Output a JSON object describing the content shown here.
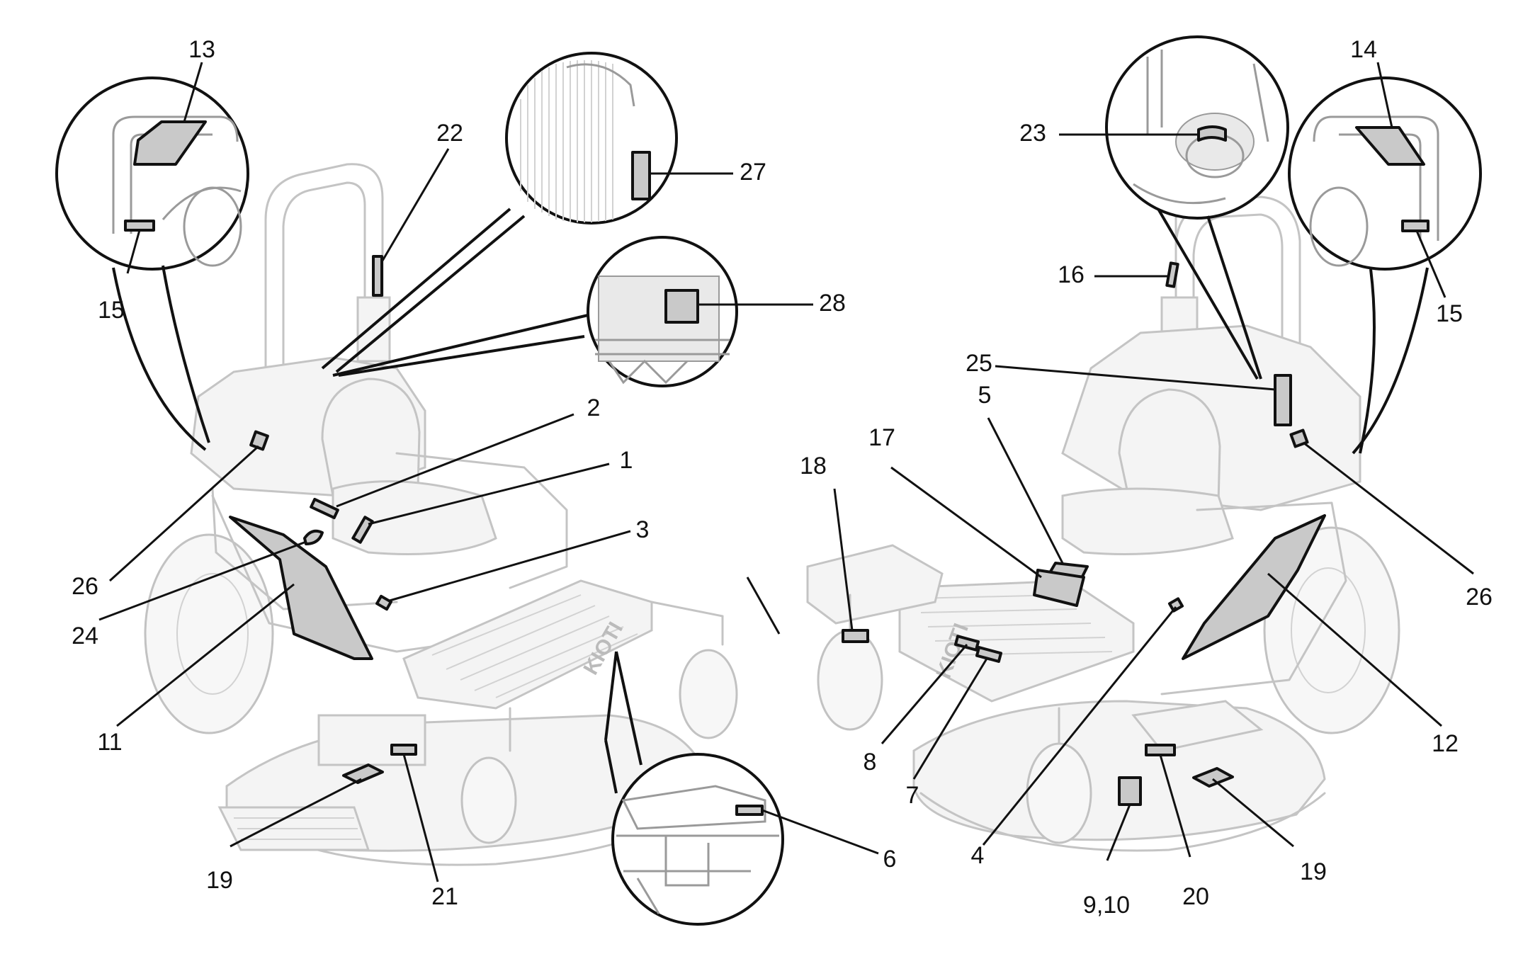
{
  "diagram": {
    "labels": {
      "l1": "1",
      "l2": "2",
      "l3": "3",
      "l4": "4",
      "l5": "5",
      "l6": "6",
      "l7": "7",
      "l8": "8",
      "l910": "9,10",
      "l11": "11",
      "l12": "12",
      "l13": "13",
      "l14": "14",
      "l15a": "15",
      "l15b": "15",
      "l16": "16",
      "l17": "17",
      "l18": "18",
      "l19a": "19",
      "l19b": "19",
      "l20": "20",
      "l21": "21",
      "l22": "22",
      "l23": "23",
      "l24": "24",
      "l25": "25",
      "l26a": "26",
      "l26b": "26",
      "l27": "27",
      "l28": "28"
    },
    "brand_text": "KIOTI"
  }
}
